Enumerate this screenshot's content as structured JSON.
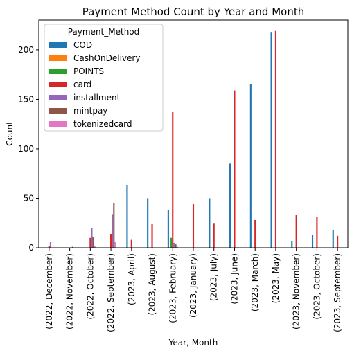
{
  "chart_data": {
    "type": "bar",
    "title": "Payment Method Count by Year and Month",
    "xlabel": "Year, Month",
    "ylabel": "Count",
    "ylim": [
      0,
      230
    ],
    "yticks": [
      0,
      50,
      100,
      150,
      200
    ],
    "grid": false,
    "legend": {
      "title": "Payment_Method",
      "placement": "upper-left"
    },
    "categories": [
      "(2022, December)",
      "(2022, November)",
      "(2022, October)",
      "(2022, September)",
      "(2023, April)",
      "(2023, August)",
      "(2023, February)",
      "(2023, January)",
      "(2023, July)",
      "(2023, June)",
      "(2023, March)",
      "(2023, May)",
      "(2023, November)",
      "(2023, October)",
      "(2023, September)"
    ],
    "series": [
      {
        "name": "COD",
        "color": "#1f77b4",
        "values": [
          0,
          0,
          0,
          0,
          63,
          50,
          38,
          0,
          50,
          85,
          165,
          218,
          7,
          13,
          18
        ]
      },
      {
        "name": "CashOnDelivery",
        "color": "#ff7f0e",
        "values": [
          0,
          0,
          0,
          0,
          0,
          0,
          0,
          0,
          0,
          0,
          0,
          0,
          0,
          0,
          0
        ]
      },
      {
        "name": "POINTS",
        "color": "#2ca02c",
        "values": [
          0,
          0,
          0,
          0,
          0,
          0,
          10,
          0,
          0,
          0,
          0,
          0,
          0,
          0,
          0
        ]
      },
      {
        "name": "card",
        "color": "#d62728",
        "values": [
          2,
          0,
          10,
          14,
          8,
          24,
          137,
          44,
          25,
          159,
          28,
          219,
          33,
          31,
          12
        ]
      },
      {
        "name": "installment",
        "color": "#9467bd",
        "values": [
          6,
          0,
          20,
          34,
          0,
          0,
          5,
          0,
          0,
          0,
          0,
          0,
          0,
          0,
          0
        ]
      },
      {
        "name": "mintpay",
        "color": "#8c564b",
        "values": [
          0,
          1,
          11,
          45,
          0,
          0,
          4,
          0,
          0,
          0,
          0,
          0,
          0,
          0,
          0
        ]
      },
      {
        "name": "tokenizedcard",
        "color": "#e377c2",
        "values": [
          0,
          0,
          2,
          6,
          0,
          0,
          1,
          0,
          0,
          0,
          0,
          0,
          0,
          0,
          0
        ]
      }
    ]
  }
}
